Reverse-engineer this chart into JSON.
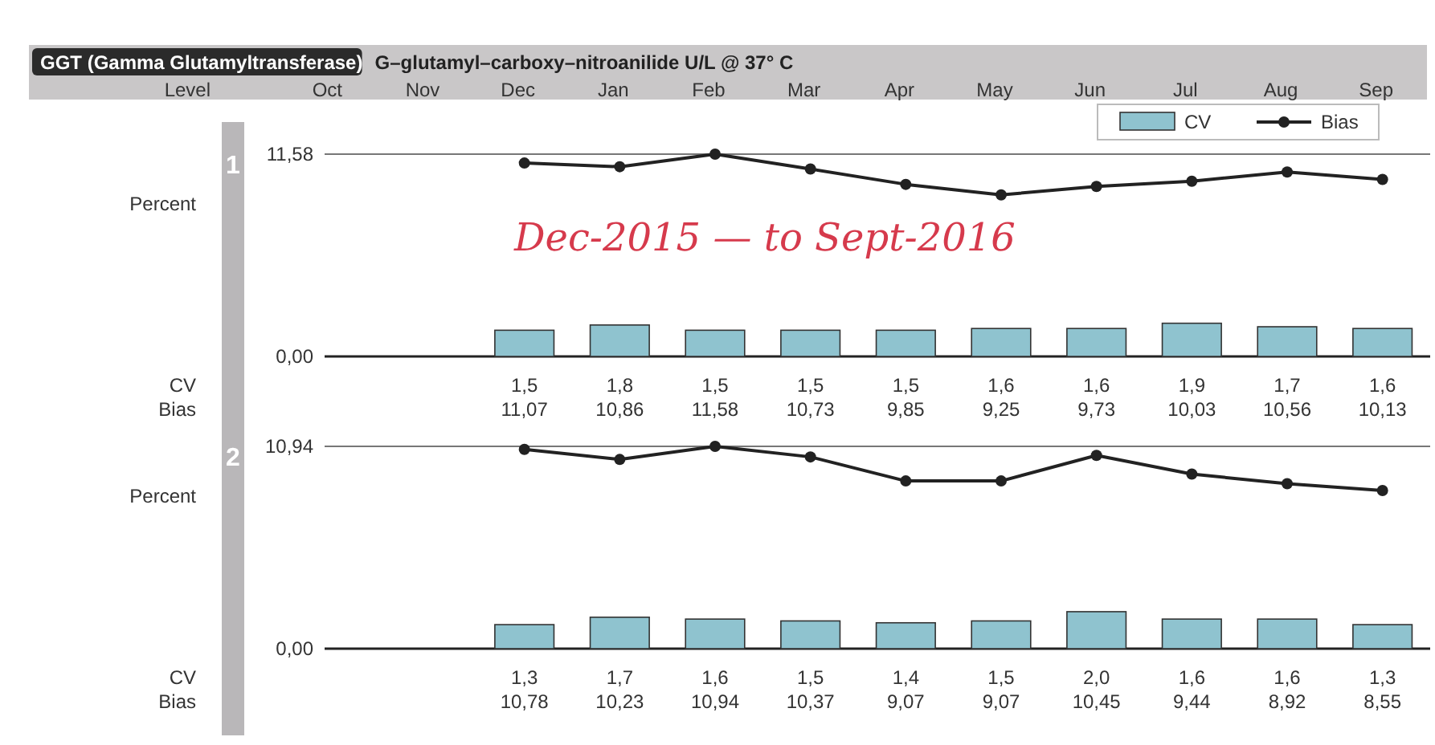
{
  "chart_data": [
    {
      "type": "bar",
      "title": "GGT (Gamma Glutamyltransferase)",
      "subtitle": "G–glutamyl–carboxy–nitroanilide U/L @ 37° C",
      "ylabel": "Percent",
      "annotations": [
        "Level",
        "1",
        "Dec-2015 — to Sept-2016"
      ],
      "categories": [
        "Oct",
        "Nov",
        "Dec",
        "Jan",
        "Feb",
        "Mar",
        "Apr",
        "May",
        "Jun",
        "Jul",
        "Aug",
        "Sep"
      ],
      "ylim": [
        0,
        11.58
      ],
      "yticks": [
        {
          "value": 0,
          "label": "0,00"
        },
        {
          "value": 11.58,
          "label": "11,58"
        }
      ],
      "legend": "top right",
      "marker": "circle",
      "series": [
        {
          "name": "CV",
          "color": "#8fc3cf",
          "values": [
            null,
            null,
            1.5,
            1.8,
            1.5,
            1.5,
            1.5,
            1.6,
            1.6,
            1.9,
            1.7,
            1.6
          ],
          "value_labels": [
            null,
            null,
            "1,5",
            "1,8",
            "1,5",
            "1,5",
            "1,5",
            "1,6",
            "1,6",
            "1,9",
            "1,7",
            "1,6"
          ]
        },
        {
          "name": "Bias",
          "type": "line",
          "color": "#222222",
          "values": [
            null,
            null,
            11.07,
            10.86,
            11.58,
            10.73,
            9.85,
            9.25,
            9.73,
            10.03,
            10.56,
            10.13
          ],
          "value_labels": [
            null,
            null,
            "11,07",
            "10,86",
            "11,58",
            "10,73",
            "9,85",
            "9,25",
            "9,73",
            "10,03",
            "10,56",
            "10,13"
          ]
        }
      ]
    },
    {
      "type": "bar",
      "ylabel": "Percent",
      "annotations": [
        "2",
        "CV",
        "Bias"
      ],
      "categories": [
        null,
        null,
        null,
        null,
        null,
        null,
        null,
        null,
        null,
        null,
        null,
        null
      ],
      "ylim": [
        0,
        10.94
      ],
      "yticks": [
        {
          "value": 0,
          "label": "0,00"
        },
        {
          "value": 10.94,
          "label": "10,94"
        }
      ],
      "tick_labels": "y",
      "marker": "circle",
      "series": [
        {
          "color": "#8fc3cf",
          "values": [
            null,
            null,
            1.3,
            1.7,
            1.6,
            1.5,
            1.4,
            1.5,
            2.0,
            1.6,
            1.6,
            1.3
          ],
          "value_labels": [
            null,
            null,
            "1,3",
            "1,7",
            "1,6",
            "1,5",
            "1,4",
            "1,5",
            "2,0",
            "1,6",
            "1,6",
            "1,3"
          ]
        },
        {
          "type": "line",
          "color": "#222222",
          "values": [
            null,
            null,
            10.78,
            10.23,
            10.94,
            10.37,
            9.07,
            9.07,
            10.45,
            9.44,
            8.92,
            8.55
          ],
          "value_labels": [
            null,
            null,
            "10,78",
            "10,23",
            "10,94",
            "10,37",
            "9,07",
            "9,07",
            "10,45",
            "9,44",
            "8,92",
            "8,55"
          ]
        }
      ]
    }
  ]
}
